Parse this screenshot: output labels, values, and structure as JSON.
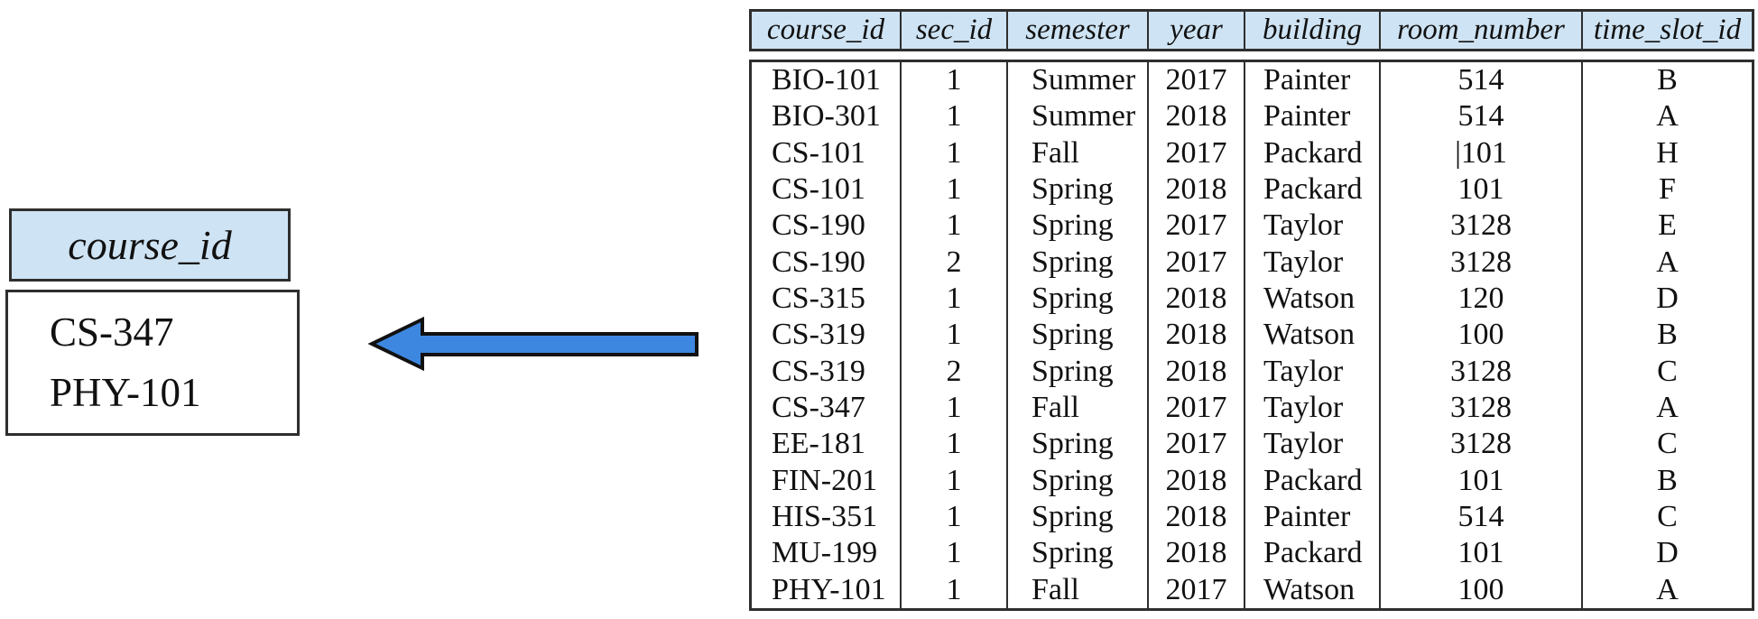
{
  "result": {
    "header": "course_id",
    "rows": [
      "CS-347",
      "PHY-101"
    ]
  },
  "arrow": {
    "icon": "left-block-arrow",
    "direction": "left"
  },
  "section_table": {
    "columns": [
      "course_id",
      "sec_id",
      "semester",
      "year",
      "building",
      "room_number",
      "time_slot_id"
    ],
    "rows": [
      [
        "BIO-101",
        "1",
        "Summer",
        "2017",
        "Painter",
        "514",
        "B"
      ],
      [
        "BIO-301",
        "1",
        "Summer",
        "2018",
        "Painter",
        "514",
        "A"
      ],
      [
        "CS-101",
        "1",
        "Fall",
        "2017",
        "Packard",
        "|101",
        "H"
      ],
      [
        "CS-101",
        "1",
        "Spring",
        "2018",
        "Packard",
        "101",
        "F"
      ],
      [
        "CS-190",
        "1",
        "Spring",
        "2017",
        "Taylor",
        "3128",
        "E"
      ],
      [
        "CS-190",
        "2",
        "Spring",
        "2017",
        "Taylor",
        "3128",
        "A"
      ],
      [
        "CS-315",
        "1",
        "Spring",
        "2018",
        "Watson",
        "120",
        "D"
      ],
      [
        "CS-319",
        "1",
        "Spring",
        "2018",
        "Watson",
        "100",
        "B"
      ],
      [
        "CS-319",
        "2",
        "Spring",
        "2018",
        "Taylor",
        "3128",
        "C"
      ],
      [
        "CS-347",
        "1",
        "Fall",
        "2017",
        "Taylor",
        "3128",
        "A"
      ],
      [
        "EE-181",
        "1",
        "Spring",
        "2017",
        "Taylor",
        "3128",
        "C"
      ],
      [
        "FIN-201",
        "1",
        "Spring",
        "2018",
        "Packard",
        "101",
        "B"
      ],
      [
        "HIS-351",
        "1",
        "Spring",
        "2018",
        "Painter",
        "514",
        "C"
      ],
      [
        "MU-199",
        "1",
        "Spring",
        "2018",
        "Packard",
        "101",
        "D"
      ],
      [
        "PHY-101",
        "1",
        "Fall",
        "2017",
        "Watson",
        "100",
        "A"
      ]
    ]
  },
  "colors": {
    "header_fill": "#cee3f3",
    "border": "#2e2e2e",
    "arrow_fill": "#3e87e0",
    "arrow_outline": "#111111"
  }
}
